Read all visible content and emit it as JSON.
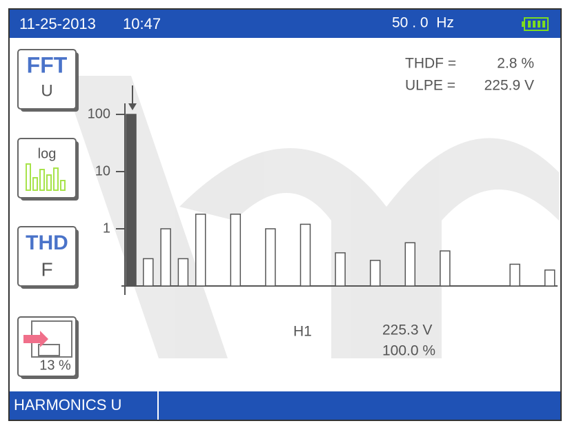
{
  "header": {
    "date": "11-25-2013",
    "time": "10:47",
    "frequency": "50 . 0  Hz"
  },
  "buttons": [
    {
      "top": "FFT",
      "bottom": "U"
    },
    {
      "top": "log"
    },
    {
      "top": "THD",
      "bottom": "F"
    },
    {
      "bottom": "13 %"
    }
  ],
  "readouts": [
    {
      "label": "THDF =",
      "value": "2.8 %"
    },
    {
      "label": "ULPE =",
      "value": "225.9 V"
    }
  ],
  "cursor": {
    "harmonic": "H1",
    "voltage": "225.3 V",
    "percent": "100.0 %"
  },
  "footer": {
    "title": "HARMONICS U"
  },
  "chart_data": {
    "type": "bar",
    "values": [
      100,
      0.3,
      1.0,
      0.3,
      1.8,
      null,
      1.8,
      null,
      1.0,
      null,
      1.2,
      null,
      0.38,
      null,
      0.28,
      null,
      0.57,
      null,
      0.41,
      null,
      null,
      null,
      0.24,
      null,
      0.19
    ],
    "log_scale": true,
    "ylim": [
      0.1,
      100
    ],
    "yticks": [
      1,
      10,
      100
    ],
    "color": "#ffffff",
    "edge_color": "#555555",
    "cursor_color": "#555555"
  }
}
